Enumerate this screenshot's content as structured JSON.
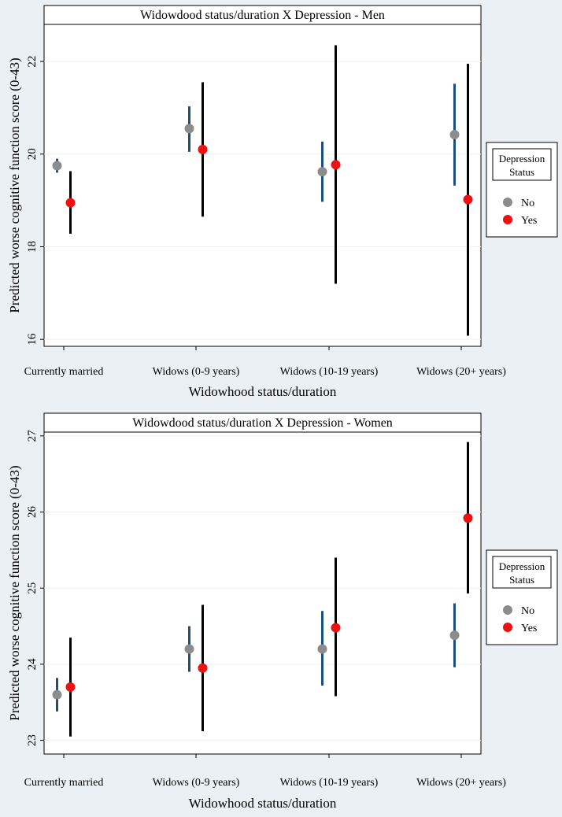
{
  "chart_data": [
    {
      "type": "scatter",
      "subtype": "point-with-error-bars",
      "title": "Widowdood status/duration X Depression - Men",
      "xlabel": "Widowhood status/duration",
      "ylabel": "Predicted worse cognitive function score (0-43)",
      "categories": [
        "Currently married",
        "Widows (0-9 years)",
        "Widows (10-19 years)",
        "Widows (20+ years)"
      ],
      "ylim": [
        15.85,
        22.8
      ],
      "yticks": [
        "16",
        "18",
        "20",
        "22"
      ],
      "grid": true,
      "legend": {
        "title_line1": "Depression",
        "title_line2": "Status",
        "placement": "right"
      },
      "series": [
        {
          "name": "No",
          "color": "#8c8c8c",
          "bar_color": "#1f4e79",
          "values": [
            19.75,
            20.55,
            19.62,
            20.42
          ],
          "lower": [
            19.6,
            20.05,
            18.97,
            19.32
          ],
          "upper": [
            19.9,
            21.03,
            20.27,
            21.52
          ]
        },
        {
          "name": "Yes",
          "color": "#ee1111",
          "bar_color": "#000000",
          "values": [
            18.95,
            20.1,
            19.77,
            19.02
          ],
          "lower": [
            18.28,
            18.65,
            17.2,
            16.08
          ],
          "upper": [
            19.63,
            21.55,
            22.35,
            21.95
          ]
        }
      ]
    },
    {
      "type": "scatter",
      "subtype": "point-with-error-bars",
      "title": "Widowdood status/duration X Depression - Women",
      "xlabel": "Widowhood status/duration",
      "ylabel": "Predicted worse cognitive function score (0-43)",
      "categories": [
        "Currently married",
        "Widows (0-9 years)",
        "Widows (10-19 years)",
        "Widows (20+ years)"
      ],
      "ylim": [
        22.82,
        27.05
      ],
      "yticks": [
        "23",
        "24",
        "25",
        "26",
        "27"
      ],
      "grid": true,
      "legend": {
        "title_line1": "Depression",
        "title_line2": "Status",
        "placement": "right"
      },
      "series": [
        {
          "name": "No",
          "color": "#8c8c8c",
          "bar_color": "#1f4e79",
          "values": [
            23.6,
            24.2,
            24.2,
            24.38
          ],
          "lower": [
            23.38,
            23.9,
            23.72,
            23.96
          ],
          "upper": [
            23.82,
            24.5,
            24.7,
            24.8
          ]
        },
        {
          "name": "Yes",
          "color": "#ee1111",
          "bar_color": "#000000",
          "values": [
            23.7,
            23.95,
            24.48,
            25.92
          ],
          "lower": [
            23.05,
            23.12,
            23.58,
            24.93
          ],
          "upper": [
            24.35,
            24.78,
            25.4,
            26.92
          ]
        }
      ]
    }
  ]
}
